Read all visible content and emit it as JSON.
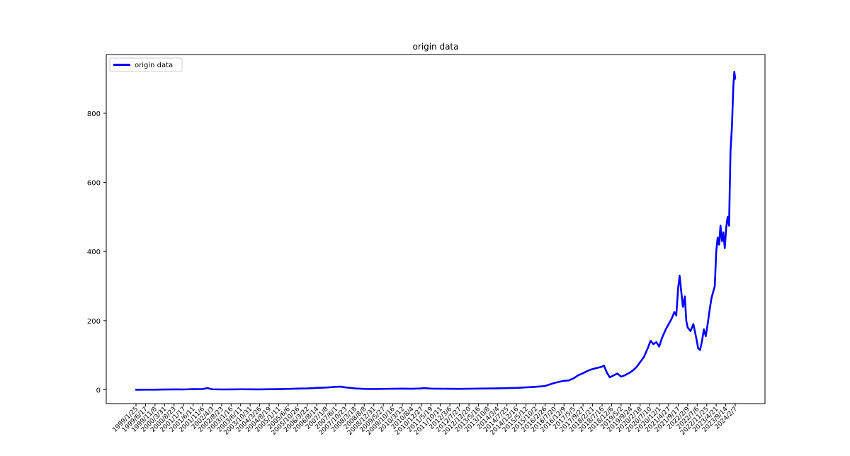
{
  "chart_data": {
    "type": "line",
    "title": "origin data",
    "xlabel": "",
    "ylabel": "",
    "legend": {
      "placement": "top-left"
    },
    "grid": false,
    "ylim": [
      -40,
      970
    ],
    "yticks": [
      0,
      200,
      400,
      600,
      800
    ],
    "x_ticks": [
      "1999/1/25",
      "1999/6/17",
      "1999/11/8",
      "2000/3/31",
      "2000/8/23",
      "2001/1/17",
      "2001/6/11",
      "2001/11/6",
      "2002/4/3",
      "2002/8/23",
      "2003/1/16",
      "2003/6/11",
      "2003/10/31",
      "2004/3/26",
      "2004/8/19",
      "2005/1/11",
      "2005/6/6",
      "2005/10/26",
      "2006/3/22",
      "2006/8/14",
      "2007/1/8",
      "2007/6/1",
      "2007/10/23",
      "2008/3/18",
      "2008/8/8",
      "2008/12/31",
      "2009/5/27",
      "2009/10/16",
      "2010/3/12",
      "2010/8/4",
      "2010/12/27",
      "2011/5/19",
      "2011/10/11",
      "2012/3/6",
      "2012/7/27",
      "2012/12/20",
      "2013/5/16",
      "2013/10/8",
      "2014/3/4",
      "2014/7/25",
      "2014/12/16",
      "2015/5/12",
      "2015/10/2",
      "2016/2/26",
      "2016/7/20",
      "2016/12/9",
      "2017/5/5",
      "2017/9/27",
      "2018/2/21",
      "2018/7/16",
      "2018/12/6",
      "2019/5/2",
      "2019/9/24",
      "2020/2/18",
      "2020/7/10",
      "2020/12/1",
      "2021/4/27",
      "2021/9/17",
      "2022/2/9",
      "2022/7/6",
      "2022/11/25",
      "2023/4/21",
      "2023/9/14",
      "2024/2/7"
    ],
    "series": [
      {
        "name": "origin data",
        "color": "#0000ff",
        "points": [
          [
            0,
            0.1
          ],
          [
            1,
            0.2
          ],
          [
            2,
            0.3
          ],
          [
            3,
            0.8
          ],
          [
            4,
            1.2
          ],
          [
            5,
            1.0
          ],
          [
            6,
            1.8
          ],
          [
            7,
            2.0
          ],
          [
            7.5,
            5.0
          ],
          [
            8,
            1.5
          ],
          [
            9,
            1.0
          ],
          [
            10,
            1.2
          ],
          [
            11,
            1.5
          ],
          [
            12,
            1.3
          ],
          [
            13,
            1.2
          ],
          [
            14,
            1.6
          ],
          [
            15,
            1.8
          ],
          [
            16,
            2.5
          ],
          [
            17,
            3.5
          ],
          [
            18,
            4.0
          ],
          [
            19,
            5.5
          ],
          [
            20,
            6.5
          ],
          [
            21,
            8.5
          ],
          [
            21.5,
            9.0
          ],
          [
            22,
            7.0
          ],
          [
            23,
            4.0
          ],
          [
            24,
            2.5
          ],
          [
            25,
            2.0
          ],
          [
            26,
            2.5
          ],
          [
            27,
            3.0
          ],
          [
            28,
            3.5
          ],
          [
            29,
            2.8
          ],
          [
            30,
            4.0
          ],
          [
            30.3,
            5.0
          ],
          [
            31,
            3.5
          ],
          [
            32,
            3.0
          ],
          [
            33,
            2.8
          ],
          [
            34,
            2.7
          ],
          [
            35,
            3.0
          ],
          [
            36,
            3.3
          ],
          [
            37,
            3.8
          ],
          [
            38,
            4.2
          ],
          [
            39,
            4.8
          ],
          [
            40,
            5.5
          ],
          [
            41,
            7.0
          ],
          [
            42,
            8.5
          ],
          [
            43,
            11.0
          ],
          [
            44,
            20.0
          ],
          [
            45,
            26.0
          ],
          [
            45.5,
            27.0
          ],
          [
            46,
            33.0
          ],
          [
            46.5,
            42.0
          ],
          [
            47,
            48.0
          ],
          [
            47.5,
            55.0
          ],
          [
            48,
            60.0
          ],
          [
            48.6,
            64.0
          ],
          [
            49,
            67.0
          ],
          [
            49.2,
            70.0
          ],
          [
            49.5,
            50.0
          ],
          [
            49.8,
            36.0
          ],
          [
            50.1,
            40.0
          ],
          [
            50.6,
            47.0
          ],
          [
            51,
            38.0
          ],
          [
            51.4,
            42.0
          ],
          [
            51.8,
            48.0
          ],
          [
            52.2,
            55.0
          ],
          [
            52.6,
            65.0
          ],
          [
            53,
            80.0
          ],
          [
            53.4,
            95.0
          ],
          [
            53.8,
            120.0
          ],
          [
            54.1,
            142.0
          ],
          [
            54.4,
            132.0
          ],
          [
            54.7,
            138.0
          ],
          [
            55,
            125.0
          ],
          [
            55.3,
            150.0
          ],
          [
            55.7,
            175.0
          ],
          [
            56,
            190.0
          ],
          [
            56.3,
            205.0
          ],
          [
            56.6,
            225.0
          ],
          [
            56.8,
            215.0
          ],
          [
            57.0,
            295.0
          ],
          [
            57.15,
            330.0
          ],
          [
            57.3,
            290.0
          ],
          [
            57.5,
            240.0
          ],
          [
            57.7,
            270.0
          ],
          [
            57.85,
            200.0
          ],
          [
            58.0,
            180.0
          ],
          [
            58.3,
            170.0
          ],
          [
            58.6,
            190.0
          ],
          [
            58.9,
            150.0
          ],
          [
            59.1,
            120.0
          ],
          [
            59.3,
            115.0
          ],
          [
            59.5,
            140.0
          ],
          [
            59.7,
            175.0
          ],
          [
            59.9,
            155.0
          ],
          [
            60.1,
            190.0
          ],
          [
            60.3,
            230.0
          ],
          [
            60.5,
            265.0
          ],
          [
            60.7,
            285.0
          ],
          [
            60.85,
            300.0
          ],
          [
            61.0,
            400.0
          ],
          [
            61.15,
            440.0
          ],
          [
            61.3,
            420.0
          ],
          [
            61.45,
            475.0
          ],
          [
            61.6,
            430.0
          ],
          [
            61.75,
            455.0
          ],
          [
            61.9,
            410.0
          ],
          [
            62.05,
            470.0
          ],
          [
            62.2,
            500.0
          ],
          [
            62.35,
            475.0
          ],
          [
            62.5,
            690.0
          ],
          [
            62.65,
            760.0
          ],
          [
            62.8,
            880.0
          ],
          [
            62.9,
            920.0
          ],
          [
            63.0,
            900.0
          ]
        ]
      }
    ]
  }
}
